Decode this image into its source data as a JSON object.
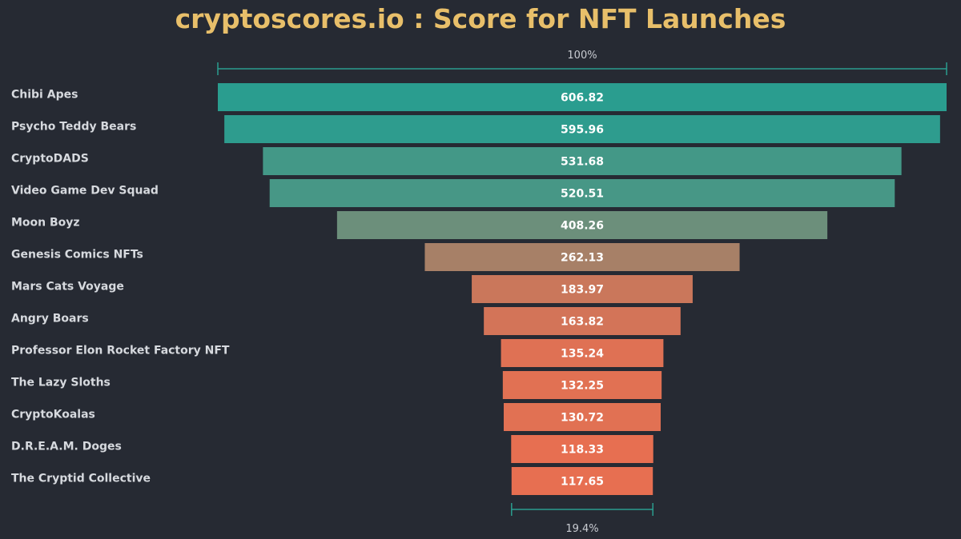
{
  "title": "cryptoscores.io : Score for NFT Launches",
  "chart_data": {
    "type": "bar",
    "subtype": "funnel",
    "title": "cryptoscores.io : Score for NFT Launches",
    "categories": [
      "Chibi Apes",
      "Psycho Teddy Bears",
      "CryptoDADS",
      "Video Game Dev Squad",
      "Moon Boyz",
      "Genesis Comics NFTs",
      "Mars Cats Voyage",
      "Angry Boars",
      "Professor Elon Rocket Factory NFT",
      "The Lazy Sloths",
      "CryptoKoalas",
      "D.R.E.A.M. Doges",
      "The Cryptid Collective"
    ],
    "values": [
      606.82,
      595.96,
      531.68,
      520.51,
      408.26,
      262.13,
      183.97,
      163.82,
      135.24,
      132.25,
      130.72,
      118.33,
      117.65
    ],
    "value_labels": [
      "606.82",
      "595.96",
      "531.68",
      "520.51",
      "408.26",
      "262.13",
      "183.97",
      "163.82",
      "135.24",
      "132.25",
      "130.72",
      "118.33",
      "117.65"
    ],
    "top_percent_label": "100%",
    "bottom_percent_label": "19.4%",
    "colors": {
      "background": "#262a33",
      "title": "#e8bf6a",
      "high": "#2a9d8f",
      "mid": "#7b8c76",
      "low": "#e76f51",
      "bracket": "#2a9d8f"
    },
    "grid": false,
    "legend": "none"
  }
}
